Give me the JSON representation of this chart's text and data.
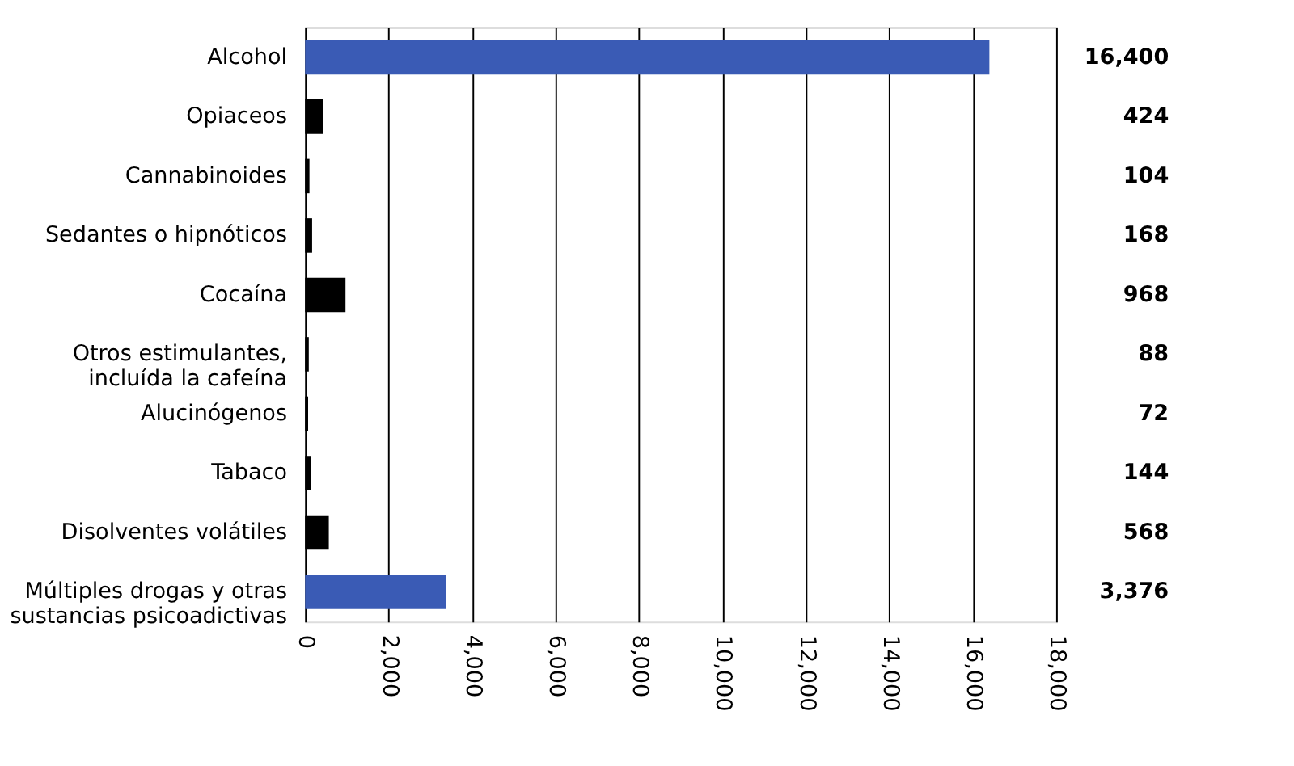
{
  "chart_data": {
    "type": "bar",
    "orientation": "horizontal",
    "categories": [
      "Alcohol",
      "Opiaceos",
      "Cannabinoides",
      "Sedantes o hipnóticos",
      "Cocaína",
      "Otros estimulantes,\nincluída la cafeína",
      "Alucinógenos",
      "Tabaco",
      "Disolventes volátiles",
      "Múltiples drogas y otras\nsustancias psicoadictivas"
    ],
    "values": [
      16400,
      424,
      104,
      168,
      968,
      88,
      72,
      144,
      568,
      3376
    ],
    "colors": [
      "#3a5bb5",
      "#000000",
      "#000000",
      "#000000",
      "#000000",
      "#000000",
      "#000000",
      "#000000",
      "#000000",
      "#3a5bb5"
    ],
    "value_labels": [
      "16,400",
      "424",
      "104",
      "168",
      "968",
      "88",
      "72",
      "144",
      "568",
      "3,376"
    ],
    "xlim": [
      0,
      18000
    ],
    "xticks": [
      {
        "value": 0,
        "label": "0"
      },
      {
        "value": 2000,
        "label": "2,000"
      },
      {
        "value": 4000,
        "label": "4,000"
      },
      {
        "value": 6000,
        "label": "6,000"
      },
      {
        "value": 8000,
        "label": "8,000"
      },
      {
        "value": 10000,
        "label": "10,000"
      },
      {
        "value": 12000,
        "label": "12,000"
      },
      {
        "value": 14000,
        "label": "14,000"
      },
      {
        "value": 16000,
        "label": "16,000"
      },
      {
        "value": 18000,
        "label": "18,000"
      }
    ],
    "grid": "x"
  }
}
